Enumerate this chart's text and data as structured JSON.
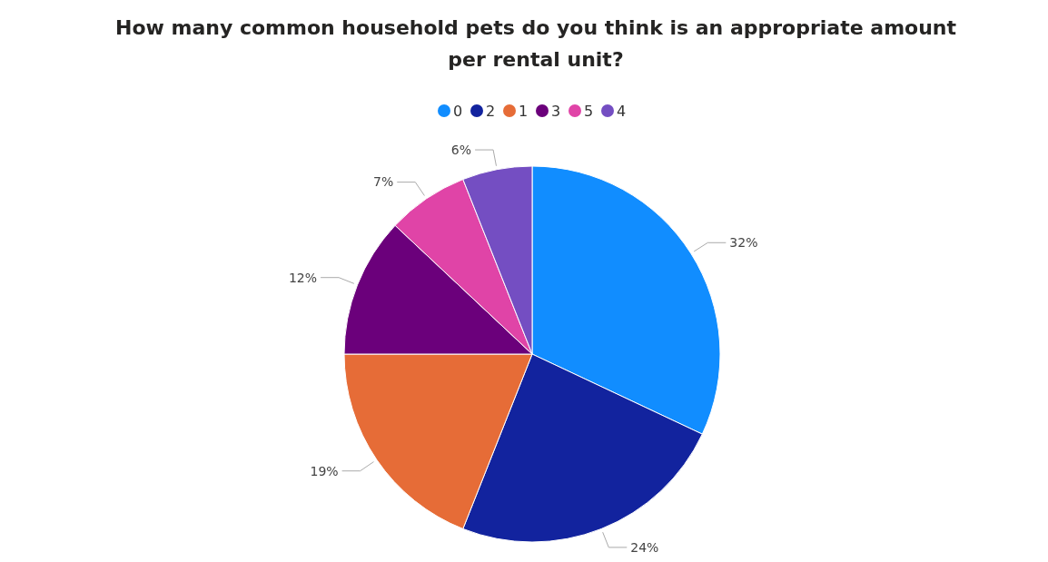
{
  "chart_data": {
    "type": "pie",
    "title": "How many common household pets do you think is an appropriate amount per rental unit?",
    "categories": [
      "0",
      "2",
      "1",
      "3",
      "5",
      "4"
    ],
    "values": [
      32,
      24,
      19,
      12,
      7,
      6
    ],
    "colors": [
      "#118dff",
      "#12239e",
      "#e66c37",
      "#6b007b",
      "#e044a7",
      "#744ec2"
    ],
    "value_labels": [
      "32%",
      "24%",
      "19%",
      "12%",
      "7%",
      "6%"
    ],
    "legend": "top"
  }
}
